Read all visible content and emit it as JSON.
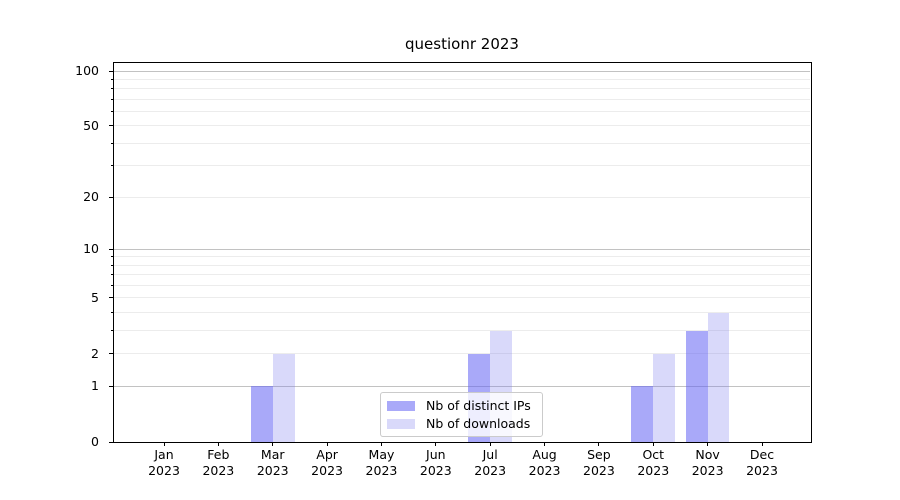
{
  "chart_data": {
    "type": "bar",
    "title": "questionr 2023",
    "year_label": "2023",
    "categories": [
      "Jan",
      "Feb",
      "Mar",
      "Apr",
      "May",
      "Jun",
      "Jul",
      "Aug",
      "Sep",
      "Oct",
      "Nov",
      "Dec"
    ],
    "series": [
      {
        "name": "Nb of distinct IPs",
        "color": "rgba(99,99,244,0.55)",
        "values": [
          0,
          0,
          1,
          0,
          0,
          0,
          2,
          0,
          0,
          1,
          3,
          0
        ]
      },
      {
        "name": "Nb of downloads",
        "color": "rgba(119,119,237,0.28)",
        "values": [
          0,
          0,
          2,
          0,
          0,
          0,
          3,
          0,
          0,
          2,
          4,
          0
        ]
      }
    ],
    "yscale": "log1p",
    "ylim": [
      0,
      112
    ],
    "yticks": [
      0,
      1,
      2,
      5,
      10,
      20,
      50,
      100
    ],
    "grid": {
      "major": [
        1,
        10,
        100
      ],
      "minor": [
        2,
        3,
        4,
        5,
        6,
        7,
        8,
        9,
        20,
        30,
        40,
        50,
        60,
        70,
        80,
        90
      ]
    },
    "legend_position": "lower center",
    "xlabel": "",
    "ylabel": ""
  },
  "colors": {
    "background": "#ffffff",
    "spine": "#000000",
    "grid_major": "#c2c2c2",
    "grid_minor": "#ececec",
    "text": "#000000",
    "legend_border": "#cbcbcb"
  }
}
